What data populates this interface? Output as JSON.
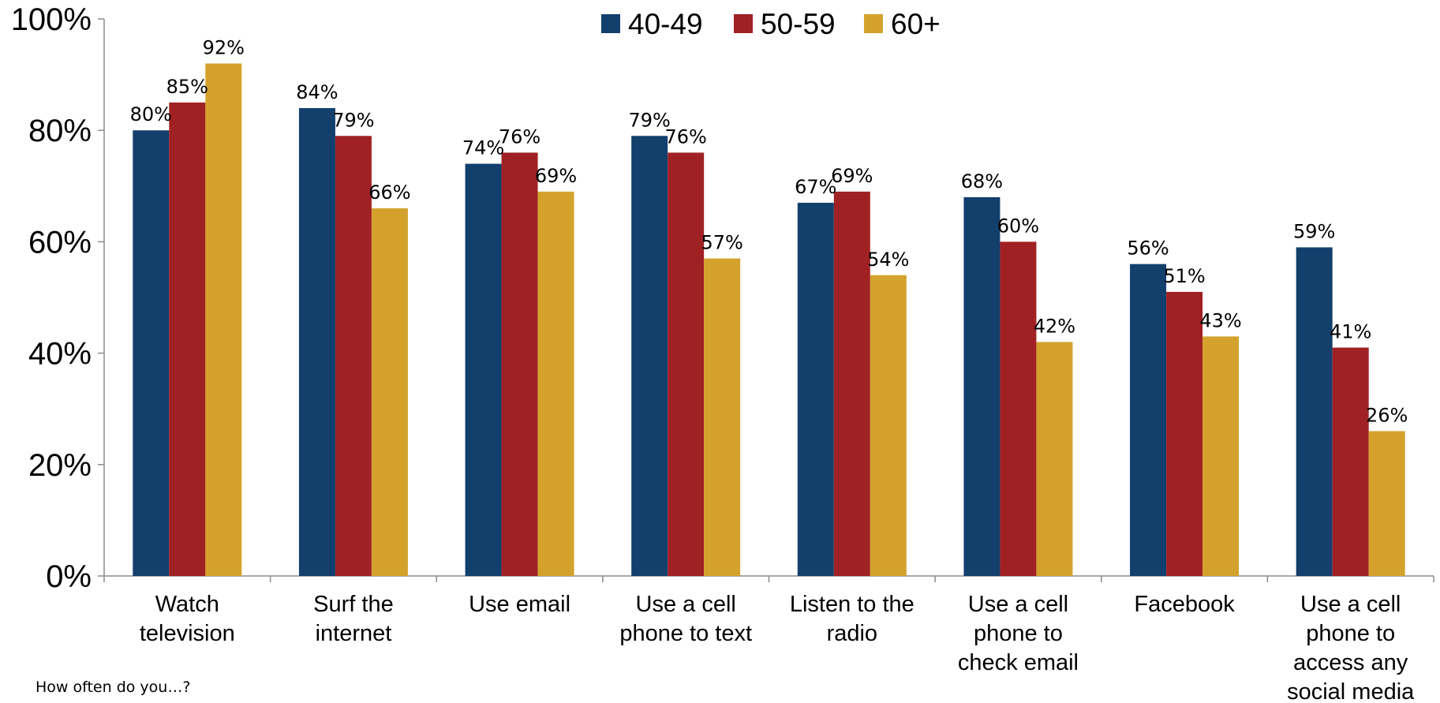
{
  "chart_data": {
    "type": "bar",
    "categories": [
      [
        "Watch",
        "television"
      ],
      [
        "Surf the",
        "internet"
      ],
      [
        "Use email"
      ],
      [
        "Use a cell",
        "phone to text"
      ],
      [
        "Listen to the",
        "radio"
      ],
      [
        "Use a cell",
        "phone to",
        "check email"
      ],
      [
        "Facebook"
      ],
      [
        "Use a cell",
        "phone to",
        "access any",
        "social media"
      ]
    ],
    "series": [
      {
        "name": "40-49",
        "color": "#133F6D",
        "values": [
          80,
          84,
          74,
          79,
          67,
          68,
          56,
          59
        ]
      },
      {
        "name": "50-59",
        "color": "#A02124",
        "values": [
          85,
          79,
          76,
          76,
          69,
          60,
          51,
          41
        ]
      },
      {
        "name": "60+",
        "color": "#D4A22C",
        "values": [
          92,
          66,
          69,
          57,
          54,
          42,
          43,
          26
        ]
      }
    ],
    "data_label_suffix": "%",
    "ylim": [
      0,
      100
    ],
    "yticks": [
      "0%",
      "20%",
      "40%",
      "60%",
      "80%",
      "100%"
    ],
    "ytick_values": [
      0,
      20,
      40,
      60,
      80,
      100
    ],
    "legend_position": "top-center",
    "grid": false,
    "title": "",
    "xlabel": "",
    "ylabel": ""
  },
  "footnote": "How often do you…?"
}
